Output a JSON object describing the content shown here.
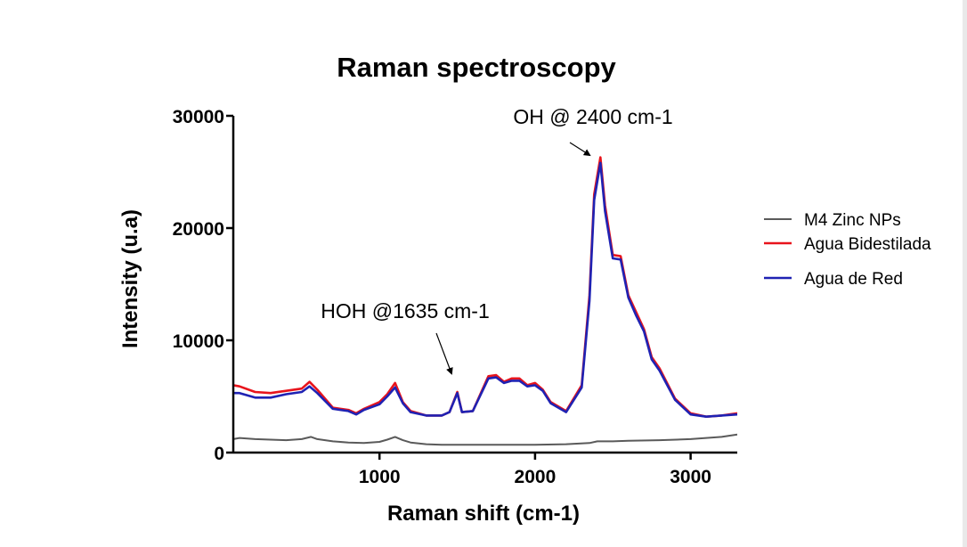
{
  "chart_data": {
    "type": "line",
    "title": "Raman spectroscopy",
    "xlabel": "Raman shift (cm-1)",
    "ylabel": "Intensity (u.a)",
    "xlim": [
      60,
      3300
    ],
    "ylim": [
      0,
      30000
    ],
    "x_ticks": [
      1000,
      2000,
      3000
    ],
    "y_ticks": [
      0,
      10000,
      20000,
      30000
    ],
    "grid": false,
    "legend_position": "right",
    "series": [
      {
        "name": "M4 Zinc NPs",
        "color": "#5a5a5a",
        "x": [
          60,
          100,
          200,
          300,
          400,
          500,
          560,
          600,
          700,
          800,
          900,
          1000,
          1050,
          1100,
          1150,
          1200,
          1300,
          1400,
          1500,
          1600,
          1700,
          1800,
          2000,
          2200,
          2350,
          2400,
          2500,
          2600,
          2800,
          3000,
          3200,
          3300
        ],
        "y": [
          1200,
          1300,
          1200,
          1150,
          1100,
          1200,
          1400,
          1200,
          1000,
          900,
          850,
          950,
          1150,
          1400,
          1100,
          900,
          750,
          700,
          700,
          700,
          700,
          700,
          700,
          750,
          850,
          1000,
          1000,
          1050,
          1100,
          1200,
          1400,
          1600
        ]
      },
      {
        "name": "Agua Bidestilada",
        "color": "#e8141c",
        "x": [
          60,
          100,
          200,
          300,
          400,
          500,
          550,
          600,
          700,
          800,
          850,
          900,
          1000,
          1050,
          1100,
          1150,
          1200,
          1300,
          1400,
          1450,
          1500,
          1530,
          1600,
          1700,
          1750,
          1800,
          1850,
          1900,
          1950,
          2000,
          2050,
          2100,
          2200,
          2300,
          2350,
          2380,
          2420,
          2450,
          2500,
          2550,
          2600,
          2650,
          2700,
          2750,
          2800,
          2900,
          3000,
          3100,
          3200,
          3300
        ],
        "y": [
          6000,
          5900,
          5400,
          5300,
          5500,
          5700,
          6300,
          5600,
          4000,
          3800,
          3500,
          3900,
          4500,
          5200,
          6200,
          4500,
          3700,
          3300,
          3300,
          3600,
          5400,
          3600,
          3700,
          6800,
          6900,
          6300,
          6600,
          6600,
          6000,
          6200,
          5600,
          4500,
          3700,
          6000,
          14000,
          23000,
          26300,
          22000,
          17600,
          17500,
          14000,
          12500,
          11000,
          8500,
          7500,
          4800,
          3500,
          3200,
          3300,
          3500
        ]
      },
      {
        "name": "Agua de Red",
        "color": "#1f22b3",
        "x": [
          60,
          100,
          200,
          300,
          400,
          500,
          550,
          600,
          700,
          800,
          850,
          900,
          1000,
          1050,
          1100,
          1150,
          1200,
          1300,
          1400,
          1450,
          1500,
          1530,
          1600,
          1700,
          1750,
          1800,
          1850,
          1900,
          1950,
          2000,
          2050,
          2100,
          2200,
          2300,
          2350,
          2380,
          2420,
          2450,
          2500,
          2550,
          2600,
          2650,
          2700,
          2750,
          2800,
          2900,
          3000,
          3100,
          3200,
          3300
        ],
        "y": [
          5300,
          5300,
          4900,
          4900,
          5200,
          5400,
          5900,
          5300,
          3900,
          3700,
          3400,
          3800,
          4300,
          5000,
          5800,
          4400,
          3600,
          3300,
          3300,
          3600,
          5300,
          3600,
          3700,
          6600,
          6700,
          6200,
          6400,
          6400,
          5900,
          6000,
          5500,
          4400,
          3600,
          5800,
          13500,
          22500,
          25800,
          21500,
          17300,
          17200,
          13800,
          12200,
          10800,
          8300,
          7300,
          4700,
          3400,
          3200,
          3300,
          3400
        ]
      }
    ],
    "annotations": [
      {
        "text": "OH @ 2400 cm-1",
        "x": 2420,
        "y": 26300
      },
      {
        "text": "HOH @1635 cm-1",
        "x": 1500,
        "y": 6800
      }
    ]
  }
}
